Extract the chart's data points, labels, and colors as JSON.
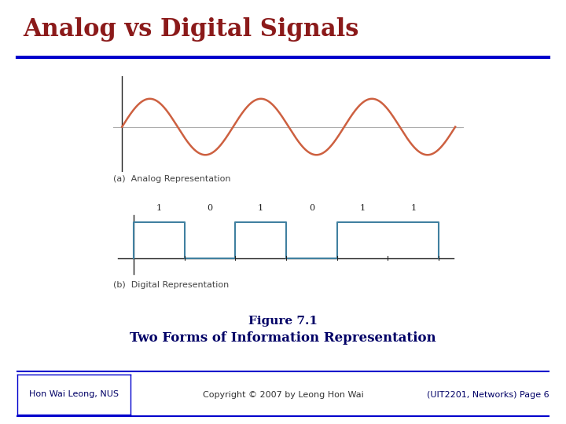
{
  "title": "Analog vs Digital Signals",
  "title_color": "#8B1A1A",
  "title_fontsize": 22,
  "divider_color": "#0000CC",
  "analog_color": "#CD6040",
  "digital_color": "#4080A0",
  "axis_color_analog": "#AAAAAA",
  "axis_color_digital": "#222222",
  "label_a": "(a)  Analog Representation",
  "label_b": "(b)  Digital Representation",
  "label_fontsize": 8,
  "figure_caption_line1": "Figure 7.1",
  "figure_caption_line2": "Two Forms of Information Representation",
  "caption_color": "#000066",
  "caption_fontsize1": 11,
  "caption_fontsize2": 12,
  "footer_left": "Hon Wai Leong, NUS",
  "footer_center": "Copyright © 2007 by Leong Hon Wai",
  "footer_right": "(UIT2201, Networks) Page 6",
  "footer_color": "#000066",
  "footer_fontsize": 8,
  "digital_bits": [
    1,
    0,
    1,
    0,
    1,
    1
  ],
  "background_color": "#FFFFFF"
}
